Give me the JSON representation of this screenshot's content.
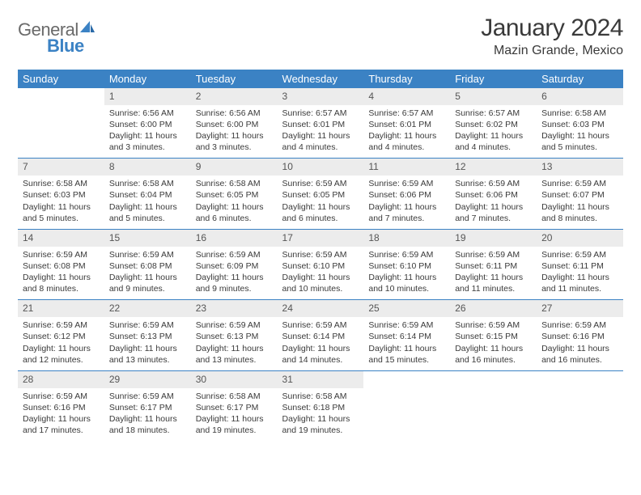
{
  "logo": {
    "part1": "General",
    "part2": "Blue"
  },
  "title": "January 2024",
  "location": "Mazin Grande, Mexico",
  "colors": {
    "header_bg": "#3b82c4",
    "header_text": "#ffffff",
    "daynum_bg": "#ececec",
    "daynum_text": "#555555",
    "body_text": "#3a3a3a",
    "rule": "#3b82c4",
    "logo_gray": "#6a6a6a",
    "logo_blue": "#3b82c4"
  },
  "weekdays": [
    "Sunday",
    "Monday",
    "Tuesday",
    "Wednesday",
    "Thursday",
    "Friday",
    "Saturday"
  ],
  "weeks": [
    [
      {
        "n": "",
        "sr": "",
        "ss": "",
        "dl": ""
      },
      {
        "n": "1",
        "sr": "6:56 AM",
        "ss": "6:00 PM",
        "dl": "11 hours and 3 minutes."
      },
      {
        "n": "2",
        "sr": "6:56 AM",
        "ss": "6:00 PM",
        "dl": "11 hours and 3 minutes."
      },
      {
        "n": "3",
        "sr": "6:57 AM",
        "ss": "6:01 PM",
        "dl": "11 hours and 4 minutes."
      },
      {
        "n": "4",
        "sr": "6:57 AM",
        "ss": "6:01 PM",
        "dl": "11 hours and 4 minutes."
      },
      {
        "n": "5",
        "sr": "6:57 AM",
        "ss": "6:02 PM",
        "dl": "11 hours and 4 minutes."
      },
      {
        "n": "6",
        "sr": "6:58 AM",
        "ss": "6:03 PM",
        "dl": "11 hours and 5 minutes."
      }
    ],
    [
      {
        "n": "7",
        "sr": "6:58 AM",
        "ss": "6:03 PM",
        "dl": "11 hours and 5 minutes."
      },
      {
        "n": "8",
        "sr": "6:58 AM",
        "ss": "6:04 PM",
        "dl": "11 hours and 5 minutes."
      },
      {
        "n": "9",
        "sr": "6:58 AM",
        "ss": "6:05 PM",
        "dl": "11 hours and 6 minutes."
      },
      {
        "n": "10",
        "sr": "6:59 AM",
        "ss": "6:05 PM",
        "dl": "11 hours and 6 minutes."
      },
      {
        "n": "11",
        "sr": "6:59 AM",
        "ss": "6:06 PM",
        "dl": "11 hours and 7 minutes."
      },
      {
        "n": "12",
        "sr": "6:59 AM",
        "ss": "6:06 PM",
        "dl": "11 hours and 7 minutes."
      },
      {
        "n": "13",
        "sr": "6:59 AM",
        "ss": "6:07 PM",
        "dl": "11 hours and 8 minutes."
      }
    ],
    [
      {
        "n": "14",
        "sr": "6:59 AM",
        "ss": "6:08 PM",
        "dl": "11 hours and 8 minutes."
      },
      {
        "n": "15",
        "sr": "6:59 AM",
        "ss": "6:08 PM",
        "dl": "11 hours and 9 minutes."
      },
      {
        "n": "16",
        "sr": "6:59 AM",
        "ss": "6:09 PM",
        "dl": "11 hours and 9 minutes."
      },
      {
        "n": "17",
        "sr": "6:59 AM",
        "ss": "6:10 PM",
        "dl": "11 hours and 10 minutes."
      },
      {
        "n": "18",
        "sr": "6:59 AM",
        "ss": "6:10 PM",
        "dl": "11 hours and 10 minutes."
      },
      {
        "n": "19",
        "sr": "6:59 AM",
        "ss": "6:11 PM",
        "dl": "11 hours and 11 minutes."
      },
      {
        "n": "20",
        "sr": "6:59 AM",
        "ss": "6:11 PM",
        "dl": "11 hours and 11 minutes."
      }
    ],
    [
      {
        "n": "21",
        "sr": "6:59 AM",
        "ss": "6:12 PM",
        "dl": "11 hours and 12 minutes."
      },
      {
        "n": "22",
        "sr": "6:59 AM",
        "ss": "6:13 PM",
        "dl": "11 hours and 13 minutes."
      },
      {
        "n": "23",
        "sr": "6:59 AM",
        "ss": "6:13 PM",
        "dl": "11 hours and 13 minutes."
      },
      {
        "n": "24",
        "sr": "6:59 AM",
        "ss": "6:14 PM",
        "dl": "11 hours and 14 minutes."
      },
      {
        "n": "25",
        "sr": "6:59 AM",
        "ss": "6:14 PM",
        "dl": "11 hours and 15 minutes."
      },
      {
        "n": "26",
        "sr": "6:59 AM",
        "ss": "6:15 PM",
        "dl": "11 hours and 16 minutes."
      },
      {
        "n": "27",
        "sr": "6:59 AM",
        "ss": "6:16 PM",
        "dl": "11 hours and 16 minutes."
      }
    ],
    [
      {
        "n": "28",
        "sr": "6:59 AM",
        "ss": "6:16 PM",
        "dl": "11 hours and 17 minutes."
      },
      {
        "n": "29",
        "sr": "6:59 AM",
        "ss": "6:17 PM",
        "dl": "11 hours and 18 minutes."
      },
      {
        "n": "30",
        "sr": "6:58 AM",
        "ss": "6:17 PM",
        "dl": "11 hours and 19 minutes."
      },
      {
        "n": "31",
        "sr": "6:58 AM",
        "ss": "6:18 PM",
        "dl": "11 hours and 19 minutes."
      },
      {
        "n": "",
        "sr": "",
        "ss": "",
        "dl": ""
      },
      {
        "n": "",
        "sr": "",
        "ss": "",
        "dl": ""
      },
      {
        "n": "",
        "sr": "",
        "ss": "",
        "dl": ""
      }
    ]
  ],
  "labels": {
    "sunrise": "Sunrise:",
    "sunset": "Sunset:",
    "daylight": "Daylight:"
  }
}
